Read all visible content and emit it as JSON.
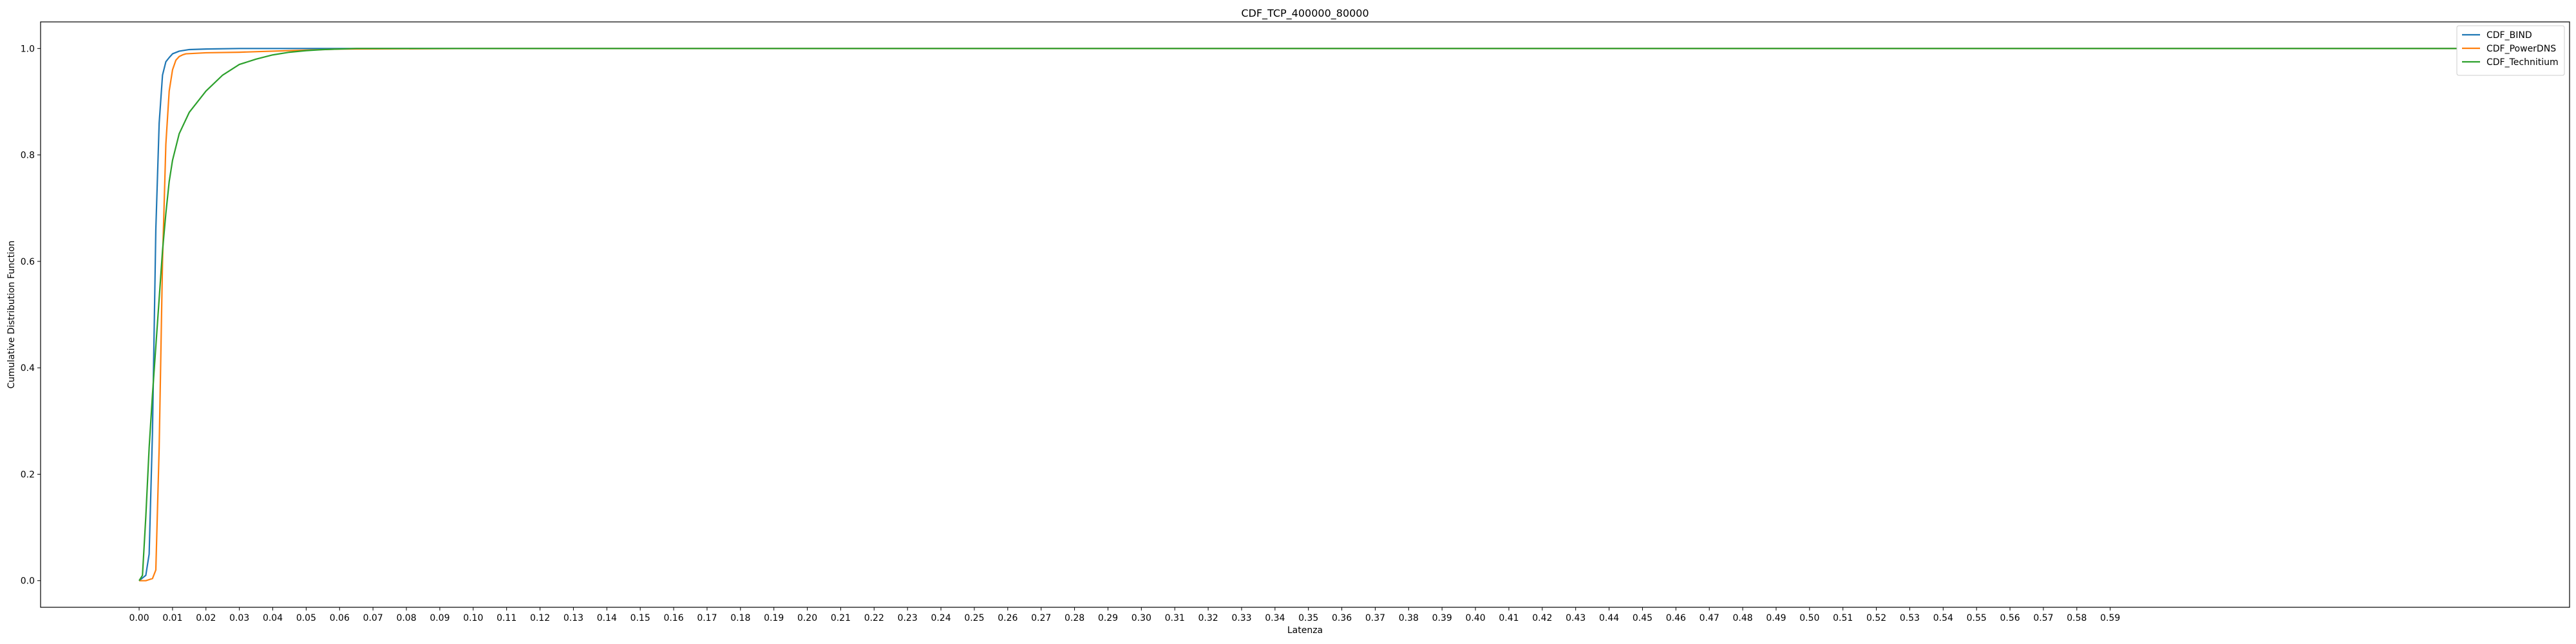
{
  "chart_data": {
    "type": "line",
    "title": "CDF_TCP_400000_80000",
    "xlabel": "Latenza",
    "ylabel": "Cumulative Distribution Function",
    "xlim": [
      -0.0295,
      0.7275
    ],
    "ylim": [
      -0.05,
      1.05
    ],
    "xticks": [
      0.0,
      0.01,
      0.02,
      0.03,
      0.04,
      0.05,
      0.06,
      0.07,
      0.08,
      0.09,
      0.1,
      0.11,
      0.12,
      0.13,
      0.14,
      0.15,
      0.16,
      0.17,
      0.18,
      0.19,
      0.2,
      0.21,
      0.22,
      0.23,
      0.24,
      0.25,
      0.26,
      0.27,
      0.28,
      0.29,
      0.3,
      0.31,
      0.32,
      0.33,
      0.34,
      0.35,
      0.36,
      0.37,
      0.38,
      0.39,
      0.4,
      0.41,
      0.42,
      0.43,
      0.44,
      0.45,
      0.46,
      0.47,
      0.48,
      0.49,
      0.5,
      0.51,
      0.52,
      0.53,
      0.54,
      0.55,
      0.56,
      0.57,
      0.58,
      0.59
    ],
    "xtick_labels": [
      "0.00",
      "0.01",
      "0.02",
      "0.03",
      "0.04",
      "0.05",
      "0.06",
      "0.07",
      "0.08",
      "0.09",
      "0.10",
      "0.11",
      "0.12",
      "0.13",
      "0.14",
      "0.15",
      "0.16",
      "0.17",
      "0.18",
      "0.19",
      "0.20",
      "0.21",
      "0.22",
      "0.23",
      "0.24",
      "0.25",
      "0.26",
      "0.27",
      "0.28",
      "0.29",
      "0.30",
      "0.31",
      "0.32",
      "0.33",
      "0.34",
      "0.35",
      "0.36",
      "0.37",
      "0.38",
      "0.39",
      "0.40",
      "0.41",
      "0.42",
      "0.43",
      "0.44",
      "0.45",
      "0.46",
      "0.47",
      "0.48",
      "0.49",
      "0.50",
      "0.51",
      "0.52",
      "0.53",
      "0.54",
      "0.55",
      "0.56",
      "0.57",
      "0.58",
      "0.59"
    ],
    "yticks": [
      0.0,
      0.2,
      0.4,
      0.6,
      0.8,
      1.0
    ],
    "ytick_labels": [
      "0.0",
      "0.2",
      "0.4",
      "0.6",
      "0.8",
      "1.0"
    ],
    "grid": false,
    "legend_position": "top-right",
    "series": [
      {
        "name": "CDF_BIND",
        "color": "#1f77b4",
        "x": [
          0.0,
          0.002,
          0.003,
          0.004,
          0.005,
          0.006,
          0.007,
          0.008,
          0.009,
          0.01,
          0.012,
          0.015,
          0.02,
          0.03,
          0.05,
          0.1,
          0.3,
          0.5,
          0.698
        ],
        "y": [
          0.0,
          0.01,
          0.05,
          0.28,
          0.66,
          0.86,
          0.95,
          0.975,
          0.983,
          0.99,
          0.995,
          0.998,
          0.999,
          1.0,
          1.0,
          1.0,
          1.0,
          1.0,
          1.0
        ]
      },
      {
        "name": "CDF_PowerDNS",
        "color": "#ff7f0e",
        "x": [
          0.0,
          0.002,
          0.004,
          0.005,
          0.006,
          0.007,
          0.008,
          0.009,
          0.01,
          0.011,
          0.012,
          0.013,
          0.014,
          0.02,
          0.03,
          0.04,
          0.05,
          0.06,
          0.1,
          0.3,
          0.5,
          0.698
        ],
        "y": [
          0.0,
          0.0,
          0.004,
          0.02,
          0.25,
          0.6,
          0.82,
          0.92,
          0.96,
          0.978,
          0.985,
          0.988,
          0.99,
          0.992,
          0.993,
          0.995,
          0.997,
          0.999,
          1.0,
          1.0,
          1.0,
          1.0
        ]
      },
      {
        "name": "CDF_Technitium",
        "color": "#2ca02c",
        "x": [
          0.0,
          0.001,
          0.002,
          0.003,
          0.004,
          0.005,
          0.006,
          0.007,
          0.008,
          0.009,
          0.01,
          0.012,
          0.015,
          0.02,
          0.025,
          0.03,
          0.035,
          0.04,
          0.045,
          0.05,
          0.055,
          0.06,
          0.065,
          0.07,
          0.1,
          0.3,
          0.5,
          0.698
        ],
        "y": [
          0.0,
          0.01,
          0.12,
          0.25,
          0.35,
          0.44,
          0.53,
          0.62,
          0.69,
          0.75,
          0.79,
          0.84,
          0.88,
          0.92,
          0.95,
          0.97,
          0.98,
          0.988,
          0.993,
          0.996,
          0.998,
          0.999,
          1.0,
          1.0,
          1.0,
          1.0,
          1.0,
          1.0
        ]
      }
    ]
  }
}
